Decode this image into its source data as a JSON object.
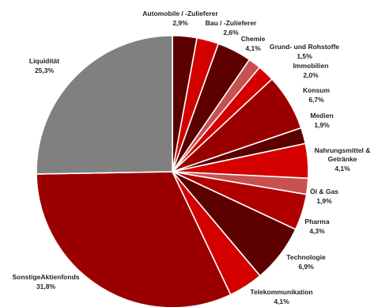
{
  "chart_data": {
    "type": "pie",
    "title": "",
    "slices": [
      {
        "label": "Automobile / -Zulieferer",
        "value": 2.9,
        "value_label": "2,9%",
        "color": "#5c0000"
      },
      {
        "label": "Bau / -Zulieferer",
        "value": 2.6,
        "value_label": "2,6%",
        "color": "#d40000"
      },
      {
        "label": "Chemie",
        "value": 4.1,
        "value_label": "4,1%",
        "color": "#5c0000"
      },
      {
        "label": "Grund- und Rohstoffe",
        "value": 1.5,
        "value_label": "1,5%",
        "color": "#c85050"
      },
      {
        "label": "Immobilien",
        "value": 2.0,
        "value_label": "2,0%",
        "color": "#d40000"
      },
      {
        "label": "Konsum",
        "value": 6.7,
        "value_label": "6,7%",
        "color": "#9b0000"
      },
      {
        "label": "Medien",
        "value": 1.9,
        "value_label": "1,9%",
        "color": "#5c0000"
      },
      {
        "label": "Nahrungsmittel & Getränke",
        "value": 4.1,
        "value_label": "4,1%",
        "color": "#d40000"
      },
      {
        "label": "Öl & Gas",
        "value": 1.9,
        "value_label": "1,9%",
        "color": "#c85050"
      },
      {
        "label": "Pharma",
        "value": 4.3,
        "value_label": "4,3%",
        "color": "#b00000"
      },
      {
        "label": "Technologie",
        "value": 6.9,
        "value_label": "6,9%",
        "color": "#5c0000"
      },
      {
        "label": "Telekommunikation",
        "value": 4.1,
        "value_label": "4,1%",
        "color": "#d40000"
      },
      {
        "label": "SonstigeAktienfonds",
        "value": 31.8,
        "value_label": "31,8%",
        "color": "#9b0000"
      },
      {
        "label": "Liquidität",
        "value": 25.3,
        "value_label": "25,3%",
        "color": "#808080"
      }
    ]
  }
}
